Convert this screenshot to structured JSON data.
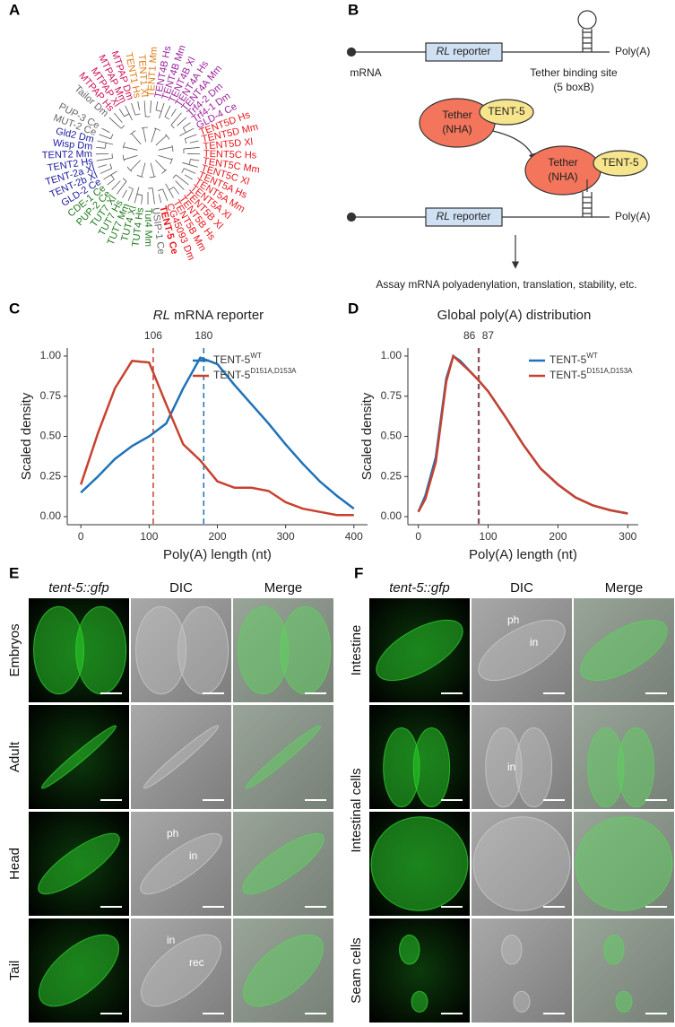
{
  "panel_labels": [
    "A",
    "B",
    "C",
    "D",
    "E",
    "F"
  ],
  "tree": {
    "leaves": [
      {
        "text": "Tailor Dm",
        "color": "#666666"
      },
      {
        "text": "MTPAP Hs",
        "color": "#d0105a"
      },
      {
        "text": "MTPAP Xl",
        "color": "#d0105a"
      },
      {
        "text": "MTPAP Mm",
        "color": "#d0105a"
      },
      {
        "text": "MTPAP Dm",
        "color": "#d0105a"
      },
      {
        "text": "TENT1 Hs",
        "color": "#e07b16"
      },
      {
        "text": "TENT1 Xl",
        "color": "#e07b16"
      },
      {
        "text": "TENT1 Mm",
        "color": "#e07b16"
      },
      {
        "text": "TENT4B Hs",
        "color": "#9a1f9a"
      },
      {
        "text": "TENT4B Mm",
        "color": "#9a1f9a"
      },
      {
        "text": "TENT4B Xl",
        "color": "#9a1f9a"
      },
      {
        "text": "TENT4A Hs",
        "color": "#9a1f9a"
      },
      {
        "text": "TENT4A Mm",
        "color": "#9a1f9a"
      },
      {
        "text": "Trf4-2 Dm",
        "color": "#9a1f9a"
      },
      {
        "text": "Trf4-1 Dm",
        "color": "#9a1f9a"
      },
      {
        "text": "GLD-4 Ce",
        "color": "#9a1f9a"
      },
      {
        "text": "TENT5D Hs",
        "color": "#e8141b"
      },
      {
        "text": "TENT5D Mm",
        "color": "#e8141b"
      },
      {
        "text": "TENT5D Xl",
        "color": "#e8141b"
      },
      {
        "text": "TENT5C Hs",
        "color": "#e8141b"
      },
      {
        "text": "TENT5C Mm",
        "color": "#e8141b"
      },
      {
        "text": "TENT5C Xl",
        "color": "#e8141b"
      },
      {
        "text": "TENT5A Hs",
        "color": "#e8141b"
      },
      {
        "text": "TENT5A Mm",
        "color": "#e8141b"
      },
      {
        "text": "TENT5A Xl",
        "color": "#e8141b"
      },
      {
        "text": "TENT5B Xl",
        "color": "#e8141b"
      },
      {
        "text": "TENT5B Hs",
        "color": "#e8141b"
      },
      {
        "text": "TENT5B Mm",
        "color": "#e8141b"
      },
      {
        "text": "CG45093 Dm",
        "color": "#e8141b"
      },
      {
        "text": "TENT-5 Ce",
        "color": "#e8141b",
        "bold": true
      },
      {
        "text": "USIP-1 Ce",
        "color": "#666666"
      },
      {
        "text": "Tut4 Mm",
        "color": "#1e7a1e"
      },
      {
        "text": "TUT4 Hs",
        "color": "#1e7a1e"
      },
      {
        "text": "TUT4 Xl",
        "color": "#1e7a1e"
      },
      {
        "text": "TUT7 Mm",
        "color": "#1e7a1e"
      },
      {
        "text": "TUT7 Hs",
        "color": "#1e7a1e"
      },
      {
        "text": "TUT7 Xl",
        "color": "#1e7a1e"
      },
      {
        "text": "PUP-2 Ce",
        "color": "#1e7a1e"
      },
      {
        "text": "CDE-1 Ce",
        "color": "#1e7a1e"
      },
      {
        "text": "GLD-2 Ce",
        "color": "#1a1aa0"
      },
      {
        "text": "TENT-2b Xl",
        "color": "#1a1aa0"
      },
      {
        "text": "TENT-2a Xl",
        "color": "#1a1aa0"
      },
      {
        "text": "TENT2 Hs",
        "color": "#1a1aa0"
      },
      {
        "text": "TENT2 Mm",
        "color": "#1a1aa0"
      },
      {
        "text": "Wisp Dm",
        "color": "#1a1aa0"
      },
      {
        "text": "Gld2 Dm",
        "color": "#1a1aa0"
      },
      {
        "text": "MUT-2 Ce",
        "color": "#666666"
      },
      {
        "text": "PUP-3 Ce",
        "color": "#666666"
      }
    ]
  },
  "diagram": {
    "reporter_italic": "RL",
    "reporter": "reporter",
    "polya": "Poly(A)",
    "mrna": "mRNA",
    "site": [
      "Tether binding site",
      "(5 boxB)"
    ],
    "tether": [
      "Tether",
      "(NHA)"
    ],
    "tent5": "TENT-5",
    "assay": "Assay mRNA polyadenylation, translation, stability, etc."
  },
  "chart_data": [
    {
      "type": "line",
      "title_italic": "RL",
      "title": "mRNA reporter",
      "x_label": "Poly(A) length (nt)",
      "y_label": "Scaled density",
      "x": [
        0,
        25,
        50,
        75,
        100,
        125,
        150,
        175,
        200,
        225,
        250,
        275,
        300,
        325,
        350,
        375,
        400
      ],
      "series": [
        {
          "name": "TENT-5",
          "superscript": "WT",
          "color": "#1f72b8",
          "values": [
            0.15,
            0.25,
            0.36,
            0.44,
            0.5,
            0.58,
            0.8,
            0.99,
            0.95,
            0.82,
            0.7,
            0.58,
            0.45,
            0.33,
            0.22,
            0.13,
            0.05
          ]
        },
        {
          "name": "TENT-5",
          "superscript": "D151A,D153A",
          "color": "#c8412f",
          "values": [
            0.2,
            0.52,
            0.8,
            0.97,
            0.96,
            0.7,
            0.45,
            0.35,
            0.22,
            0.18,
            0.18,
            0.16,
            0.09,
            0.05,
            0.03,
            0.01,
            0.01
          ]
        }
      ],
      "vlines": [
        {
          "x": 106,
          "color": "#c8412f"
        },
        {
          "x": 180,
          "color": "#1f72b8"
        }
      ],
      "xlim": [
        -20,
        420
      ],
      "xticks": [
        0,
        100,
        200,
        300,
        400
      ],
      "ylim": [
        -0.05,
        1.05
      ],
      "yticks": [
        {
          "value": 0,
          "label": "0.00"
        },
        {
          "value": 0.25,
          "label": "0.25"
        },
        {
          "value": 0.5,
          "label": "0.50"
        },
        {
          "value": 0.75,
          "label": "0.75"
        },
        {
          "value": 1,
          "label": "1.00"
        }
      ]
    },
    {
      "type": "line",
      "title": "Global poly(A) distribution",
      "x_label": "Poly(A) length (nt)",
      "y_label": "Scaled density",
      "x": [
        0,
        10,
        25,
        40,
        50,
        60,
        75,
        86,
        100,
        125,
        150,
        175,
        200,
        225,
        250,
        275,
        300
      ],
      "series": [
        {
          "name": "TENT-5",
          "superscript": "WT",
          "color": "#1f72b8",
          "values": [
            0.03,
            0.13,
            0.37,
            0.86,
            1.0,
            0.97,
            0.9,
            0.85,
            0.78,
            0.62,
            0.45,
            0.3,
            0.2,
            0.12,
            0.07,
            0.04,
            0.02
          ]
        },
        {
          "name": "TENT-5",
          "superscript": "D151A,D153A",
          "color": "#c8412f",
          "values": [
            0.03,
            0.11,
            0.34,
            0.84,
            1.0,
            0.96,
            0.9,
            0.85,
            0.78,
            0.62,
            0.45,
            0.3,
            0.2,
            0.12,
            0.07,
            0.04,
            0.02
          ]
        }
      ],
      "vlines": [
        {
          "x": 86,
          "color": "#1f72b8"
        },
        {
          "x": 87,
          "color": "#c8412f"
        }
      ],
      "xlim": [
        -15,
        315
      ],
      "xticks": [
        0,
        100,
        200,
        300
      ],
      "ylim": [
        -0.05,
        1.05
      ],
      "yticks": [
        {
          "value": 0,
          "label": "0.00"
        },
        {
          "value": 0.25,
          "label": "0.25"
        },
        {
          "value": 0.5,
          "label": "0.50"
        },
        {
          "value": 0.75,
          "label": "0.75"
        },
        {
          "value": 1,
          "label": "1.00"
        }
      ]
    }
  ],
  "microscopy": [
    {
      "headers": [
        "tent-5::gfp",
        "DIC",
        "Merge"
      ],
      "rows": [
        {
          "label": "Embryos"
        },
        {
          "label": "Adult"
        },
        {
          "label": "Head",
          "notes": [
            "ph",
            "in"
          ]
        },
        {
          "label": "Tail",
          "notes": [
            "in",
            "rec"
          ]
        }
      ]
    },
    {
      "headers": [
        "tent-5::gfp",
        "DIC",
        "Merge"
      ],
      "rows": [
        {
          "label": "Intestine",
          "notes": [
            "ph",
            "in"
          ]
        },
        {
          "label": "Intestinal cells",
          "notes": [
            "in"
          ]
        },
        {},
        {
          "label": "Seam cells"
        }
      ]
    }
  ]
}
